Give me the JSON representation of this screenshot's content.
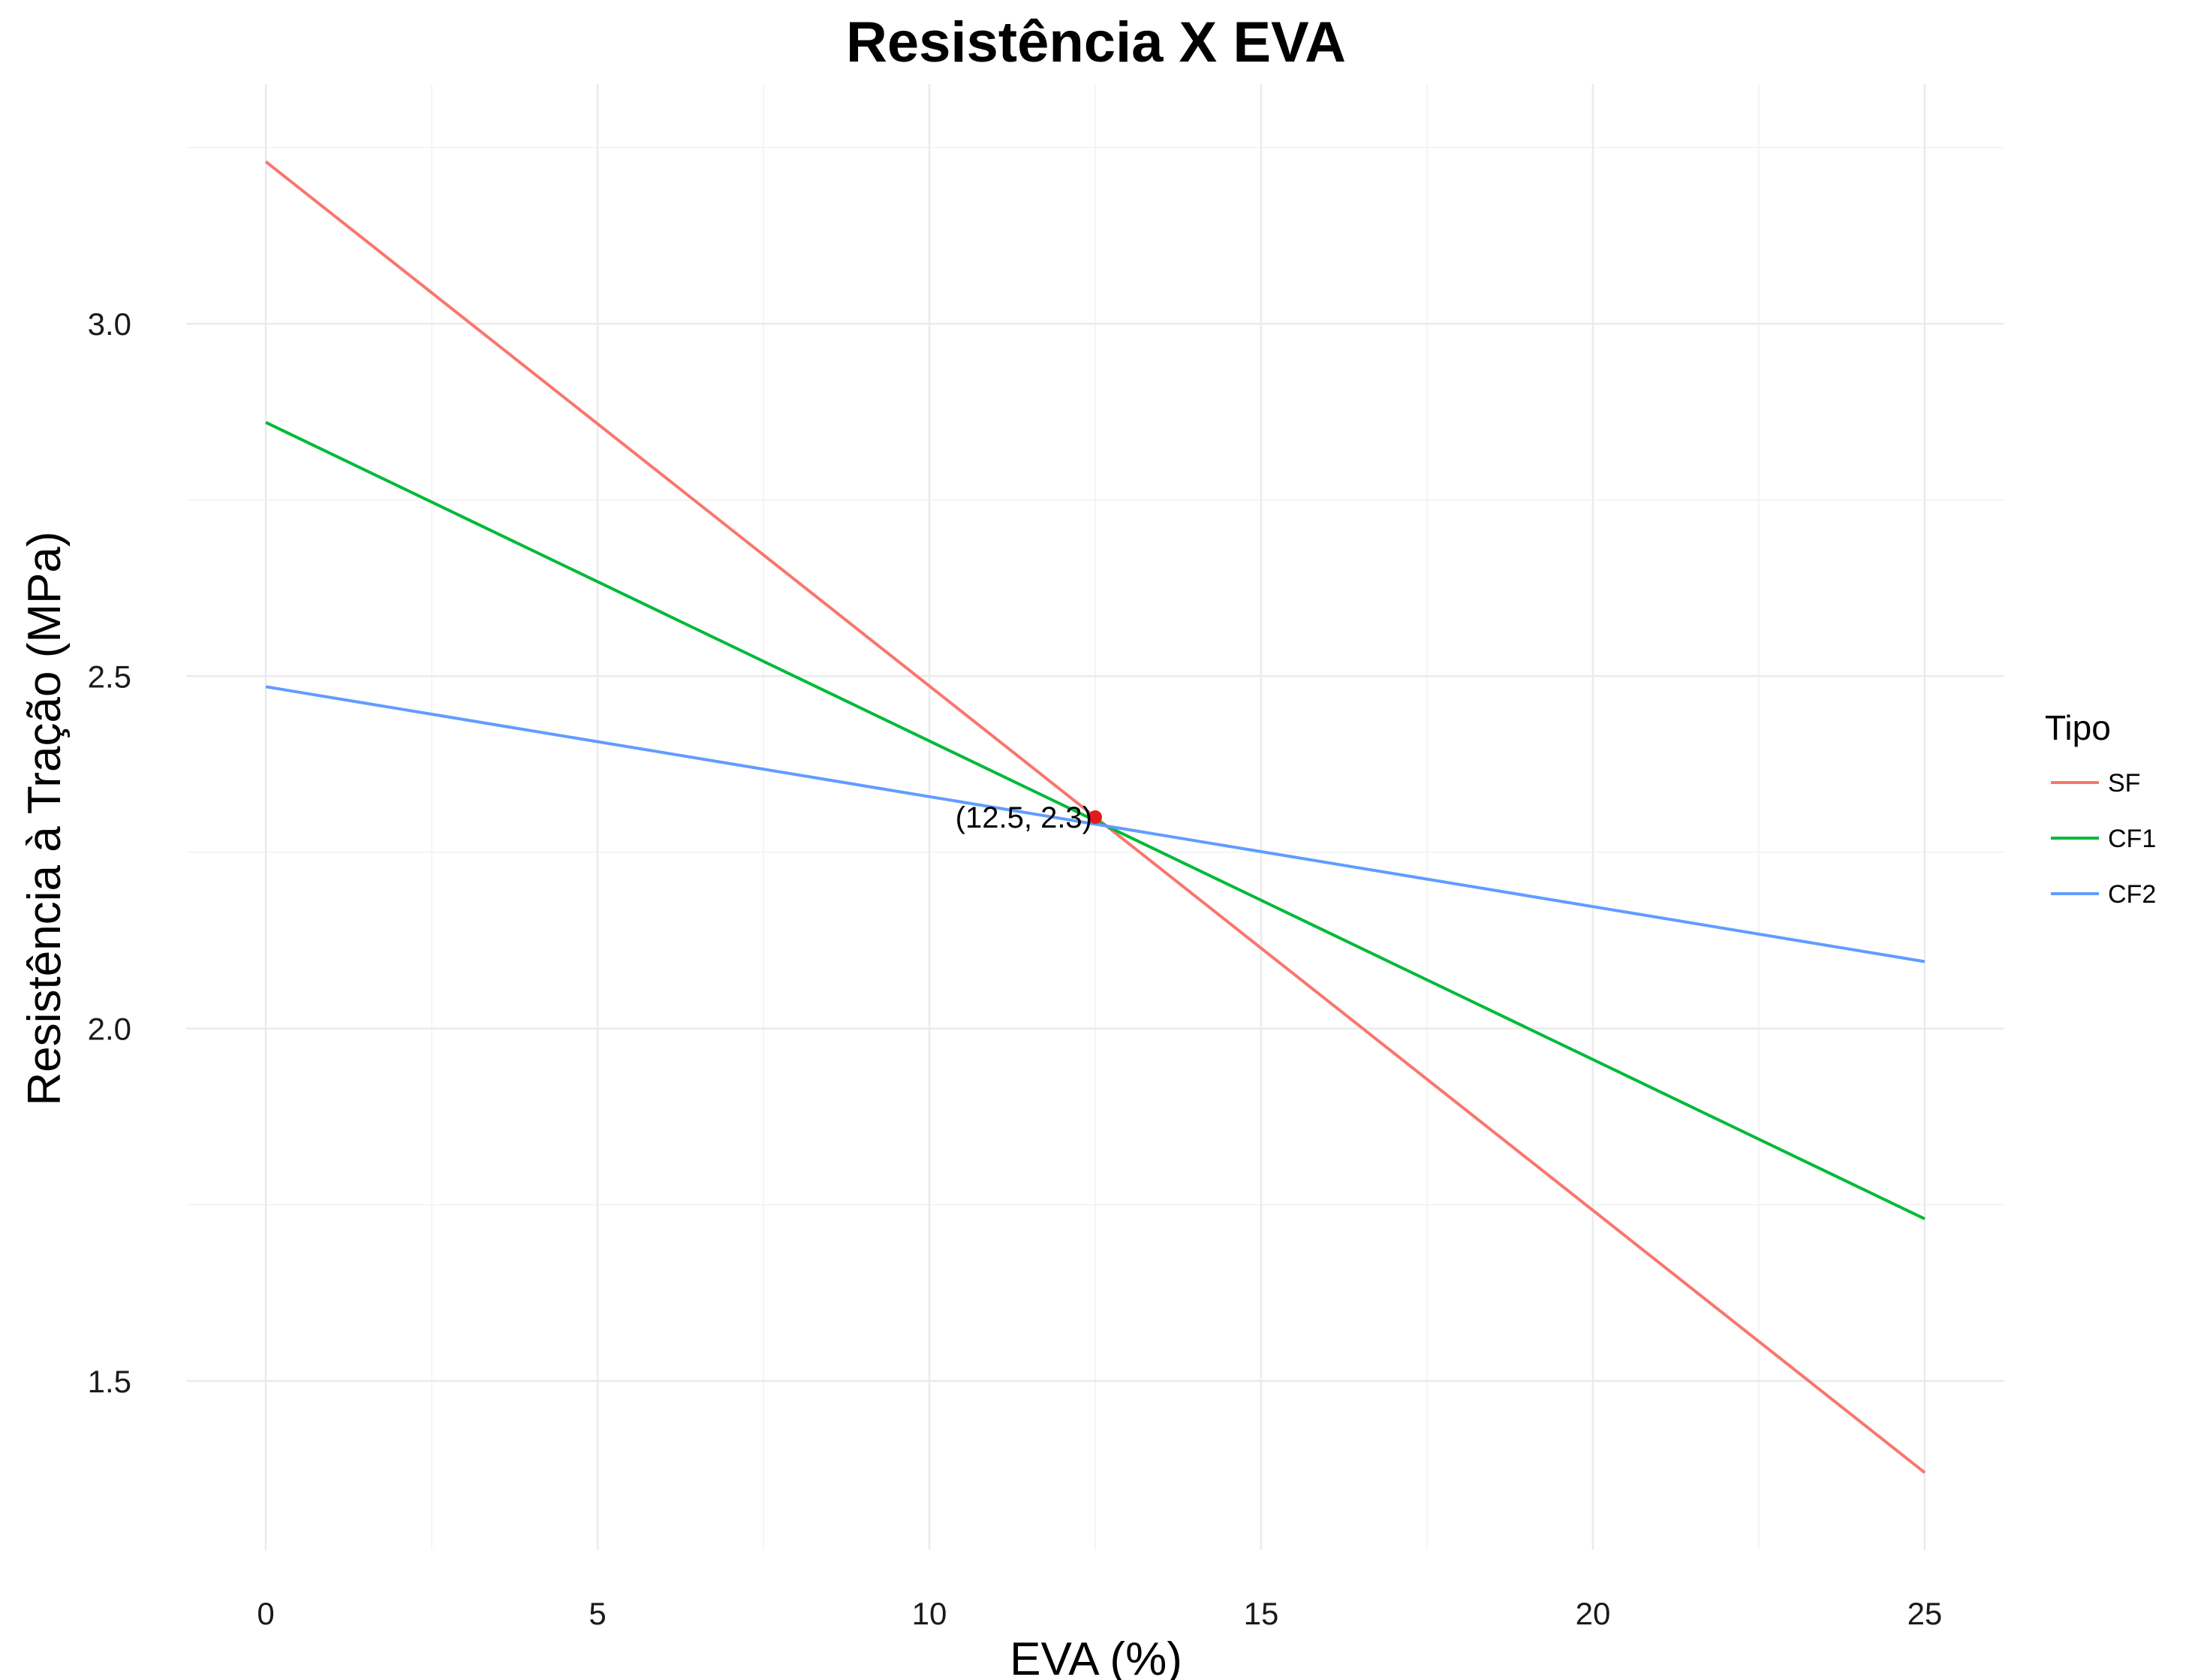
{
  "chart_data": {
    "type": "line",
    "title": "Resistência X EVA",
    "xlabel": "EVA (%)",
    "ylabel": "Resistência à Tração (MPa)",
    "xlim": [
      -1.2,
      26.2
    ],
    "ylim": [
      1.26,
      3.34
    ],
    "x_ticks": [
      0,
      5,
      10,
      15,
      20,
      25
    ],
    "y_ticks": [
      1.5,
      2.0,
      2.5,
      3.0
    ],
    "x_tick_labels": [
      "0",
      "5",
      "10",
      "15",
      "20",
      "25"
    ],
    "y_tick_labels": [
      "1.5",
      "2.0",
      "2.5",
      "3.0"
    ],
    "grid": true,
    "legend": {
      "title": "Tipo",
      "position": "right"
    },
    "series": [
      {
        "name": "SF",
        "color": "#F8766D",
        "x": [
          0,
          25
        ],
        "y": [
          3.23,
          1.37
        ]
      },
      {
        "name": "CF1",
        "color": "#00BA38",
        "x": [
          0,
          25
        ],
        "y": [
          2.86,
          1.73
        ]
      },
      {
        "name": "CF2",
        "color": "#619CFF",
        "x": [
          0,
          25
        ],
        "y": [
          2.485,
          2.095
        ]
      }
    ],
    "annotation": {
      "x": 12.5,
      "y": 2.3,
      "label": "(12.5, 2.3)",
      "color": "#E41A1C"
    }
  }
}
